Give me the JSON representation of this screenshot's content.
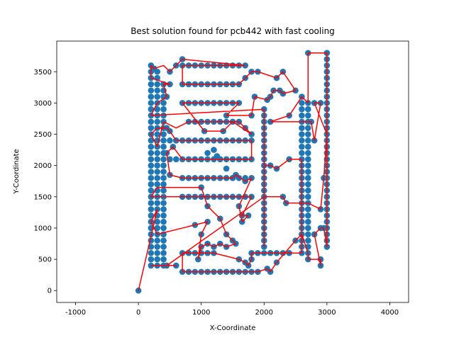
{
  "chart_data": {
    "type": "scatter",
    "title": "Best solution found for pcb442 with fast cooling",
    "xlabel": "X-Coordinate",
    "ylabel": "Y-Coordinate",
    "xlim": [
      -1300,
      4300
    ],
    "ylim": [
      -190,
      3990
    ],
    "xticks": [
      -1000,
      0,
      1000,
      2000,
      3000,
      4000
    ],
    "yticks": [
      0,
      500,
      1000,
      1500,
      2000,
      2500,
      3000,
      3500
    ],
    "grid": false,
    "colors": {
      "points": "#1f77b4",
      "tour": "#ff0000"
    },
    "vertical_runs": [
      {
        "x": 200,
        "y0": 400,
        "y1": 3500,
        "step": 100
      },
      {
        "x": 300,
        "y0": 400,
        "y1": 3500,
        "step": 100
      },
      {
        "x": 400,
        "y0": 400,
        "y1": 3300,
        "step": 100
      },
      {
        "x": 2000,
        "y0": 700,
        "y1": 2900,
        "step": 100
      },
      {
        "x": 2600,
        "y0": 600,
        "y1": 3100,
        "step": 100
      },
      {
        "x": 2700,
        "y0": 600,
        "y1": 3000,
        "step": 100
      },
      {
        "x": 3000,
        "y0": 700,
        "y1": 3800,
        "step": 100
      }
    ],
    "horizontal_runs": [
      {
        "y": 3600,
        "x0": 700,
        "x1": 1700,
        "step": 100
      },
      {
        "y": 3300,
        "x0": 700,
        "x1": 1600,
        "step": 100
      },
      {
        "y": 3000,
        "x0": 700,
        "x1": 1600,
        "step": 100
      },
      {
        "y": 2700,
        "x0": 800,
        "x1": 1600,
        "step": 100
      },
      {
        "y": 2400,
        "x0": 500,
        "x1": 1800,
        "step": 100
      },
      {
        "y": 2100,
        "x0": 500,
        "x1": 1800,
        "step": 100
      },
      {
        "y": 1800,
        "x0": 700,
        "x1": 1800,
        "step": 100
      },
      {
        "y": 1500,
        "x0": 700,
        "x1": 1800,
        "step": 100
      },
      {
        "y": 600,
        "x0": 700,
        "x1": 1200,
        "step": 100
      },
      {
        "y": 600,
        "x0": 1800,
        "x1": 2400,
        "step": 100
      },
      {
        "y": 300,
        "x0": 700,
        "x1": 1900,
        "step": 100
      }
    ],
    "extra_points": [
      [
        0,
        0
      ],
      [
        2700,
        3800
      ],
      [
        3000,
        3800
      ],
      [
        2900,
        500
      ],
      [
        2900,
        400
      ],
      [
        2700,
        500
      ],
      [
        2500,
        800
      ],
      [
        2600,
        900
      ],
      [
        2800,
        900
      ],
      [
        2900,
        1000
      ],
      [
        2950,
        1000
      ],
      [
        2900,
        1300
      ],
      [
        2950,
        1800
      ],
      [
        2800,
        2400
      ],
      [
        2750,
        2700
      ],
      [
        2900,
        3000
      ],
      [
        2800,
        3000
      ],
      [
        2300,
        3500
      ],
      [
        2200,
        3400
      ],
      [
        2250,
        3200
      ],
      [
        2150,
        3200
      ],
      [
        2100,
        3100
      ],
      [
        2050,
        3050
      ],
      [
        1900,
        3500
      ],
      [
        1800,
        3500
      ],
      [
        1700,
        3400
      ],
      [
        1850,
        3100
      ],
      [
        1800,
        2800
      ],
      [
        2100,
        2700
      ],
      [
        2400,
        2800
      ],
      [
        2300,
        3150
      ],
      [
        2500,
        3200
      ],
      [
        1400,
        2800
      ],
      [
        1500,
        2700
      ],
      [
        1700,
        2600
      ],
      [
        1800,
        2500
      ],
      [
        1350,
        2550
      ],
      [
        1050,
        2550
      ],
      [
        1100,
        2200
      ],
      [
        1200,
        2250
      ],
      [
        1250,
        2150
      ],
      [
        1300,
        2100
      ],
      [
        1400,
        1950
      ],
      [
        1500,
        1800
      ],
      [
        1550,
        1850
      ],
      [
        1700,
        1750
      ],
      [
        1000,
        1650
      ],
      [
        1100,
        1350
      ],
      [
        1300,
        1150
      ],
      [
        1400,
        900
      ],
      [
        1500,
        800
      ],
      [
        1650,
        1200
      ],
      [
        1750,
        1200
      ],
      [
        1650,
        1100
      ],
      [
        1600,
        1350
      ],
      [
        2200,
        1950
      ],
      [
        2100,
        2000
      ],
      [
        2400,
        2100
      ],
      [
        2350,
        1400
      ],
      [
        2300,
        1500
      ],
      [
        900,
        1050
      ],
      [
        1000,
        900
      ],
      [
        1100,
        1100
      ],
      [
        950,
        500
      ],
      [
        1000,
        700
      ],
      [
        1100,
        750
      ],
      [
        1200,
        700
      ],
      [
        1300,
        750
      ],
      [
        1400,
        700
      ],
      [
        1550,
        750
      ],
      [
        1600,
        500
      ],
      [
        1700,
        450
      ],
      [
        1750,
        400
      ],
      [
        1800,
        500
      ],
      [
        2200,
        450
      ],
      [
        2050,
        350
      ],
      [
        2100,
        300
      ],
      [
        600,
        400
      ],
      [
        450,
        400
      ],
      [
        700,
        3700
      ],
      [
        600,
        3600
      ],
      [
        500,
        3500
      ],
      [
        500,
        3300
      ],
      [
        400,
        3300
      ],
      [
        450,
        3100
      ],
      [
        450,
        2600
      ],
      [
        500,
        2550
      ],
      [
        550,
        2300
      ],
      [
        600,
        2400
      ],
      [
        450,
        2200
      ],
      [
        500,
        1850
      ],
      [
        250,
        3550
      ],
      [
        200,
        3600
      ]
    ],
    "tour": [
      [
        0,
        0
      ],
      [
        300,
        1300
      ],
      [
        200,
        1100
      ],
      [
        300,
        900
      ],
      [
        900,
        1050
      ],
      [
        1100,
        1100
      ],
      [
        1000,
        900
      ],
      [
        950,
        500
      ],
      [
        1000,
        700
      ],
      [
        1100,
        750
      ],
      [
        1200,
        700
      ],
      [
        1300,
        750
      ],
      [
        1400,
        700
      ],
      [
        1550,
        750
      ],
      [
        1500,
        800
      ],
      [
        1400,
        900
      ],
      [
        1300,
        1150
      ],
      [
        1100,
        1350
      ],
      [
        1000,
        1650
      ],
      [
        300,
        1650
      ],
      [
        200,
        1500
      ],
      [
        300,
        1500
      ],
      [
        1800,
        1500
      ],
      [
        1650,
        1200
      ],
      [
        1750,
        1200
      ],
      [
        1650,
        1100
      ],
      [
        1600,
        1350
      ],
      [
        1800,
        1800
      ],
      [
        1700,
        1750
      ],
      [
        1550,
        1850
      ],
      [
        1500,
        1800
      ],
      [
        700,
        1800
      ],
      [
        500,
        1850
      ],
      [
        450,
        2200
      ],
      [
        550,
        2300
      ],
      [
        700,
        2100
      ],
      [
        1800,
        2100
      ],
      [
        1800,
        2400
      ],
      [
        600,
        2400
      ],
      [
        500,
        2550
      ],
      [
        450,
        2600
      ],
      [
        300,
        2600
      ],
      [
        200,
        2500
      ],
      [
        300,
        2300
      ],
      [
        400,
        2700
      ],
      [
        600,
        2600
      ],
      [
        800,
        2700
      ],
      [
        1600,
        2700
      ],
      [
        1700,
        2600
      ],
      [
        1800,
        2500
      ],
      [
        1500,
        2700
      ],
      [
        1350,
        2550
      ],
      [
        1050,
        2550
      ],
      [
        700,
        3000
      ],
      [
        1600,
        3000
      ],
      [
        1400,
        2800
      ],
      [
        1800,
        2800
      ],
      [
        1850,
        3100
      ],
      [
        2050,
        3050
      ],
      [
        2100,
        3100
      ],
      [
        2150,
        3200
      ],
      [
        2250,
        3200
      ],
      [
        2300,
        3150
      ],
      [
        2500,
        3200
      ],
      [
        2300,
        3500
      ],
      [
        2200,
        3400
      ],
      [
        1900,
        3500
      ],
      [
        1800,
        3500
      ],
      [
        1700,
        3400
      ],
      [
        1600,
        3300
      ],
      [
        700,
        3300
      ],
      [
        700,
        3600
      ],
      [
        1700,
        3600
      ],
      [
        700,
        3700
      ],
      [
        600,
        3600
      ],
      [
        500,
        3500
      ],
      [
        400,
        3600
      ],
      [
        250,
        3550
      ],
      [
        200,
        3600
      ],
      [
        200,
        3400
      ],
      [
        500,
        3300
      ],
      [
        400,
        3300
      ],
      [
        450,
        3100
      ],
      [
        300,
        3000
      ],
      [
        200,
        2800
      ],
      [
        2000,
        2900
      ],
      [
        2000,
        700
      ],
      [
        2000,
        2000
      ],
      [
        2100,
        2000
      ],
      [
        2200,
        1950
      ],
      [
        2400,
        2100
      ],
      [
        2600,
        2100
      ],
      [
        2600,
        600
      ],
      [
        2400,
        600
      ],
      [
        1800,
        600
      ],
      [
        1800,
        500
      ],
      [
        1750,
        400
      ],
      [
        1700,
        450
      ],
      [
        1600,
        500
      ],
      [
        1200,
        600
      ],
      [
        700,
        600
      ],
      [
        700,
        300
      ],
      [
        1900,
        300
      ],
      [
        2050,
        350
      ],
      [
        2100,
        300
      ],
      [
        2200,
        450
      ],
      [
        2500,
        800
      ],
      [
        2600,
        900
      ],
      [
        2700,
        600
      ],
      [
        2700,
        500
      ],
      [
        2900,
        500
      ],
      [
        2900,
        400
      ],
      [
        2800,
        900
      ],
      [
        2900,
        1000
      ],
      [
        2950,
        1000
      ],
      [
        3000,
        700
      ],
      [
        3000,
        3800
      ],
      [
        2700,
        3800
      ],
      [
        2700,
        3000
      ],
      [
        2600,
        3100
      ],
      [
        2400,
        2800
      ],
      [
        2100,
        2700
      ],
      [
        2700,
        2700
      ],
      [
        2750,
        2700
      ],
      [
        2800,
        2400
      ],
      [
        2900,
        3000
      ],
      [
        2800,
        3000
      ],
      [
        3000,
        2500
      ],
      [
        2950,
        1800
      ],
      [
        2900,
        1300
      ],
      [
        2700,
        1400
      ],
      [
        2350,
        1400
      ],
      [
        2300,
        1500
      ],
      [
        2000,
        1500
      ],
      [
        450,
        400
      ],
      [
        600,
        400
      ],
      [
        200,
        400
      ]
    ]
  }
}
